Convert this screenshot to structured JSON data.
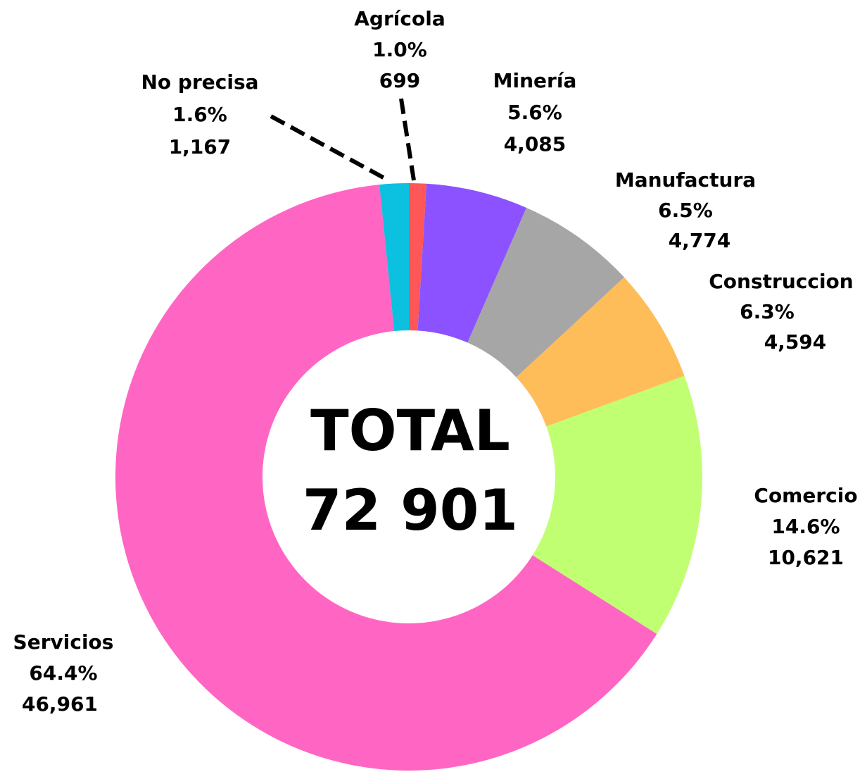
{
  "chart_data": {
    "type": "donut",
    "categories": [
      "Agrícola",
      "Minería",
      "Manufactura",
      "Construccion",
      "Comercio",
      "Servicios",
      "No precisa"
    ],
    "values": [
      699,
      4085,
      4774,
      4594,
      10621,
      46961,
      1167
    ],
    "value_labels": [
      "699",
      "4,085",
      "4,774",
      "4,594",
      "10,621",
      "46,961",
      "1,167"
    ],
    "percentages": [
      1.0,
      5.6,
      6.5,
      6.3,
      14.6,
      64.4,
      1.6
    ],
    "percentage_labels": [
      "1.0%",
      "5.6%",
      "6.5%",
      "6.3%",
      "14.6%",
      "64.4%",
      "1.6%"
    ],
    "colors": [
      "#ff5757",
      "#8c52ff",
      "#a6a6a6",
      "#ffbd59",
      "#c1ff72",
      "#ff66c4",
      "#0cc0df"
    ],
    "center_title": "TOTAL",
    "center_value": "72 901"
  }
}
